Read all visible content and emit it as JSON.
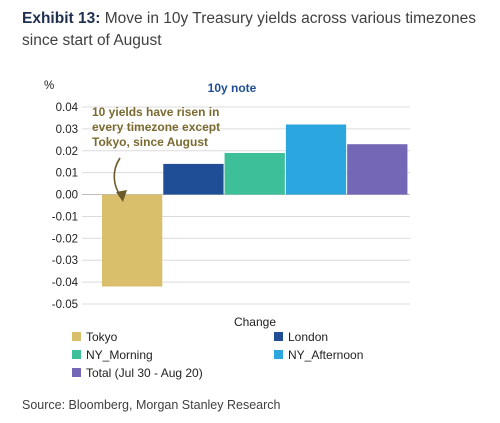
{
  "header": {
    "exhibit": "Exhibit 13:",
    "title": "Move in 10y Treasury yields across various timezones since start of August"
  },
  "source": "Source: Bloomberg, Morgan Stanley Research",
  "chart_data": {
    "type": "bar",
    "title": "10y note",
    "ylabel": "%",
    "xlabel": "Change",
    "ylim": [
      -0.05,
      0.04
    ],
    "yticks": [
      "0.04",
      "0.03",
      "0.02",
      "0.01",
      "0.00",
      "-0.01",
      "-0.02",
      "-0.03",
      "-0.04",
      "-0.05"
    ],
    "grid": true,
    "annotation": [
      "10 yields  have risen in",
      "every timezone except",
      "Tokyo, since August"
    ],
    "series": [
      {
        "name": "Tokyo",
        "value": -0.042,
        "color": "#d9be6c"
      },
      {
        "name": "London",
        "value": 0.014,
        "color": "#1f4e96"
      },
      {
        "name": "NY_Morning",
        "value": 0.019,
        "color": "#3dbf9a"
      },
      {
        "name": "NY_Afternoon",
        "value": 0.032,
        "color": "#2ba6de"
      },
      {
        "name": "Total (Jul 30 - Aug 20)",
        "value": 0.023,
        "color": "#7467b6"
      }
    ]
  }
}
